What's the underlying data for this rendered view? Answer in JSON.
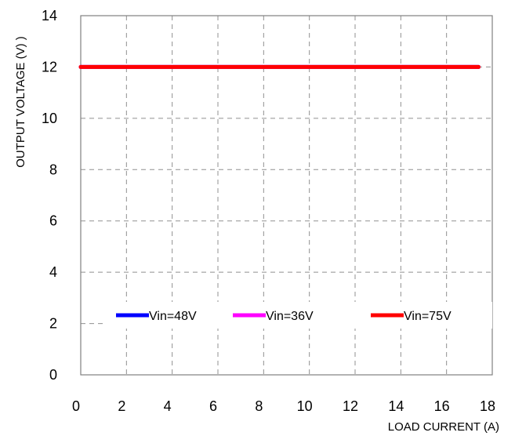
{
  "chart_data": {
    "type": "line",
    "title": "",
    "xlabel": "LOAD CURRENT (A)",
    "ylabel": "OUTPUT VOLTAGE (V) )",
    "xlim": [
      0,
      18
    ],
    "ylim": [
      0,
      14
    ],
    "x_ticks": [
      0,
      2,
      4,
      6,
      8,
      10,
      12,
      14,
      16,
      18
    ],
    "y_ticks": [
      0,
      2,
      4,
      6,
      8,
      10,
      12,
      14
    ],
    "grid": true,
    "grid_style": "dashed",
    "legend_position": "bottom inside plot, horizontal",
    "series": [
      {
        "name": "Vin=48V",
        "color": "#0000ff",
        "x": [
          0,
          17.4
        ],
        "y": [
          12,
          12
        ]
      },
      {
        "name": "Vin=36V",
        "color": "#ff00ff",
        "x": [
          0,
          17.4
        ],
        "y": [
          12,
          12
        ]
      },
      {
        "name": "Vin=75V",
        "color": "#ff0000",
        "x": [
          0,
          17.4
        ],
        "y": [
          12,
          12
        ]
      }
    ]
  }
}
